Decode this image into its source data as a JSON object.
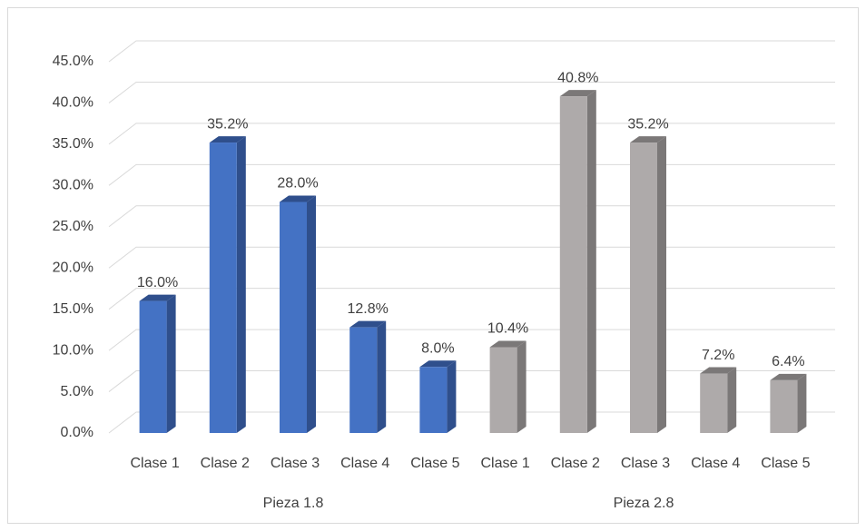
{
  "chart_data": {
    "type": "bar",
    "groups": [
      {
        "name": "Pieza 1.8",
        "color": "#4472c4",
        "side_color": "#2f4f8c",
        "categories": [
          "Clase 1",
          "Clase 2",
          "Clase 3",
          "Clase 4",
          "Clase 5"
        ],
        "values": [
          16.0,
          35.2,
          28.0,
          12.8,
          8.0
        ],
        "value_labels": [
          "16.0%",
          "35.2%",
          "28.0%",
          "12.8%",
          "8.0%"
        ]
      },
      {
        "name": "Pieza 2.8",
        "color": "#aeaaaa",
        "side_color": "#7b7878",
        "categories": [
          "Clase 1",
          "Clase 2",
          "Clase 3",
          "Clase 4",
          "Clase 5"
        ],
        "values": [
          10.4,
          40.8,
          35.2,
          7.2,
          6.4
        ],
        "value_labels": [
          "10.4%",
          "40.8%",
          "35.2%",
          "7.2%",
          "6.4%"
        ]
      }
    ],
    "ylim": [
      0,
      45
    ],
    "yticks": [
      {
        "value": 0,
        "label": "0.0%"
      },
      {
        "value": 5,
        "label": "5.0%"
      },
      {
        "value": 10,
        "label": "10.0%"
      },
      {
        "value": 15,
        "label": "15.0%"
      },
      {
        "value": 20,
        "label": "20.0%"
      },
      {
        "value": 25,
        "label": "25.0%"
      },
      {
        "value": 30,
        "label": "30.0%"
      },
      {
        "value": 35,
        "label": "35.0%"
      },
      {
        "value": 40,
        "label": "40.0%"
      },
      {
        "value": 45,
        "label": "45.0%"
      }
    ],
    "grid": true
  }
}
